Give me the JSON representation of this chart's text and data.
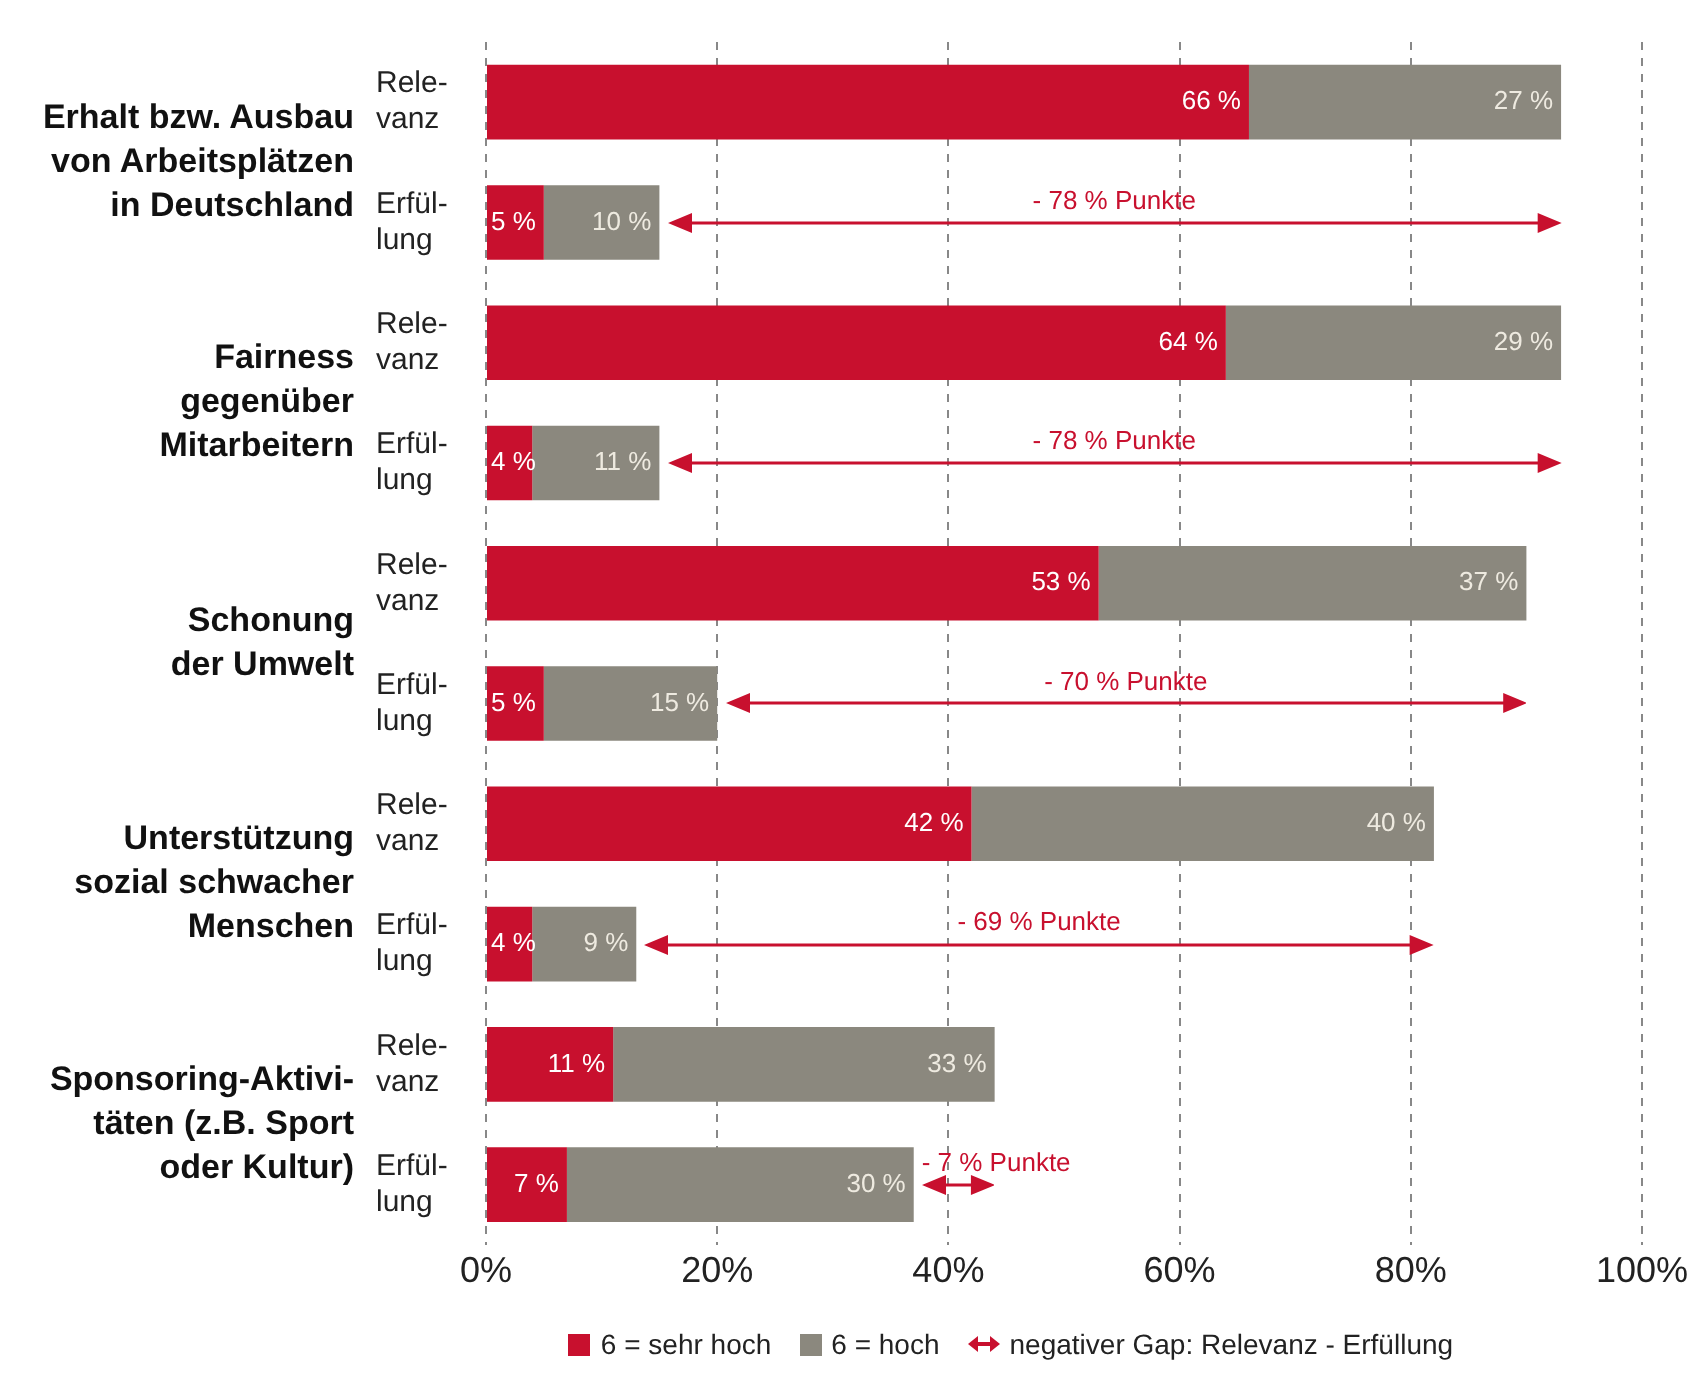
{
  "chart_data": {
    "type": "bar",
    "orientation": "horizontal",
    "stacked": true,
    "categories": [
      "Rele-\nvanz",
      "Erfül-\nlung",
      "Rele-\nvanz",
      "Erfül-\nlung",
      "Rele-\nvanz",
      "Erfül-\nlung",
      "Rele-\nvanz",
      "Erfül-\nlung",
      "Rele-\nvanz",
      "Erfül-\nlung"
    ],
    "series": [
      {
        "name": "6 = sehr hoch",
        "color": "#c8102e",
        "values": [
          66,
          5,
          64,
          4,
          53,
          5,
          42,
          4,
          11,
          7
        ],
        "value_labels": [
          "66 %",
          "5 %",
          "64 %",
          "4 %",
          "53 %",
          "5 %",
          "42 %",
          "4 %",
          "11 %",
          "7 %"
        ]
      },
      {
        "name": "6 = hoch",
        "color": "#8b887e",
        "values": [
          27,
          10,
          29,
          11,
          37,
          15,
          40,
          9,
          33,
          30
        ],
        "value_labels": [
          "27 %",
          "10 %",
          "29 %",
          "11 %",
          "37 %",
          "15 %",
          "40 %",
          "9 %",
          "33 %",
          "30 %"
        ]
      }
    ],
    "xlim": [
      0,
      100
    ],
    "xticks": [
      {
        "value": 0,
        "label": "0%"
      },
      {
        "value": 20,
        "label": "20%"
      },
      {
        "value": 40,
        "label": "40%"
      },
      {
        "value": 60,
        "label": "60%"
      },
      {
        "value": 80,
        "label": "80%"
      },
      {
        "value": 100,
        "label": "100%"
      }
    ],
    "grid": "x",
    "legend": "bottom",
    "annotations": [
      "Erhalt bzw. Ausbau\nvon Arbeitsplätzen\nin Deutschland",
      "Fairness\ngegenüber\nMitarbeitern",
      "Schonung\nder Umwelt",
      "Unterstützung\nsozial schwacher\nMenschen",
      "Sponsoring-Aktivi-\ntäten (z.B. Sport\noder Kultur)",
      "- 78 % Punkte",
      "- 78 % Punkte",
      "- 70 % Punkte",
      "- 69 % Punkte",
      "- 7 % Punkte",
      "negativer Gap: Relevanz - Erfüllung"
    ]
  }
}
